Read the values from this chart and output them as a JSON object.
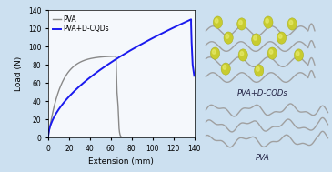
{
  "background_color": "#cce0f0",
  "plot_bg_color": "#f5f8fc",
  "xlim": [
    0,
    140
  ],
  "ylim": [
    0,
    140
  ],
  "xticks": [
    0,
    20,
    40,
    60,
    80,
    100,
    120,
    140
  ],
  "yticks": [
    0,
    20,
    40,
    60,
    80,
    100,
    120,
    140
  ],
  "xlabel": "Extension (mm)",
  "ylabel": "Load (N)",
  "pva_color": "#888888",
  "cqd_color": "#1a1aee",
  "label_pva": "PVA",
  "label_cqds": "PVA+D-CQDs",
  "dot_color": "#c8cc30",
  "dot_edge_color": "#a0a810",
  "gray_line": "#a0a0a0",
  "label_top": "PVA+D-CQDs",
  "label_bot": "PVA"
}
